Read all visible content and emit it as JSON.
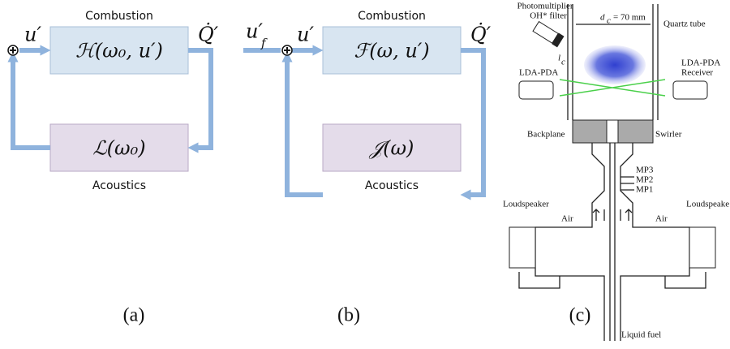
{
  "panels": [
    {
      "caption": "(a)",
      "top_heading": "Combustion",
      "top_block": "ℋ(ω₀, u′)",
      "bottom_block": "ℒ(ω₀)",
      "bottom_heading": "Acoustics",
      "input": "u′",
      "output": "Q̇′"
    },
    {
      "caption": "(b)",
      "top_heading": "Combustion",
      "top_block": "ℱ(ω, u′)",
      "bottom_block": "𝒥(ω)",
      "bottom_heading": "Acoustics",
      "forcing": "u′",
      "forcing_sub": "f",
      "input": "u′",
      "output": "Q̇′"
    },
    {
      "caption": "(c)",
      "labels": {
        "photomultiplier": "Photomultiplier",
        "filter": "OH* filter",
        "diameter": "d",
        "diameter_sub": "c",
        "diameter_value": "= 70 mm",
        "tube": "Quartz tube",
        "length": "l",
        "length_sub": "c",
        "lda_left": "LDA-PDA",
        "lda_right": "LDA-PDA",
        "receiver": "Receiver",
        "backplane": "Backplane",
        "swirler": "Swirler",
        "mp3": "MP3",
        "mp2": "MP2",
        "mp1": "MP1",
        "speaker_left": "Loudspeaker",
        "speaker_right": "Loudspeake",
        "air_left": "Air",
        "air_right": "Air",
        "fuel": "Liquid fuel"
      }
    }
  ]
}
